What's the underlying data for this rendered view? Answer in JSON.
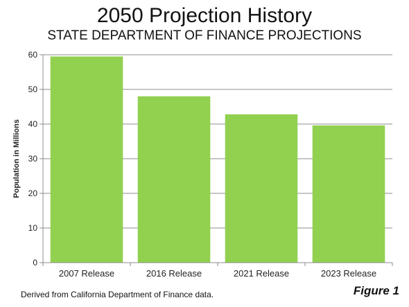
{
  "chart_data": {
    "type": "bar",
    "title": "2050 Projection History",
    "subtitle": "STATE DEPARTMENT OF FINANCE PROJECTIONS",
    "xlabel": "",
    "ylabel": "Population in Millions",
    "categories": [
      "2007 Release",
      "2016 Release",
      "2021 Release",
      "2023 Release"
    ],
    "values": [
      59.5,
      48.0,
      42.8,
      39.6
    ],
    "ylim": [
      0,
      60
    ],
    "yticks": [
      0,
      10,
      20,
      30,
      40,
      50,
      60
    ],
    "grid": true,
    "legend": "none",
    "bar_color": "#92d050"
  },
  "source_note": "Derived from California Department of Finance data.",
  "figure_label": "Figure 1"
}
